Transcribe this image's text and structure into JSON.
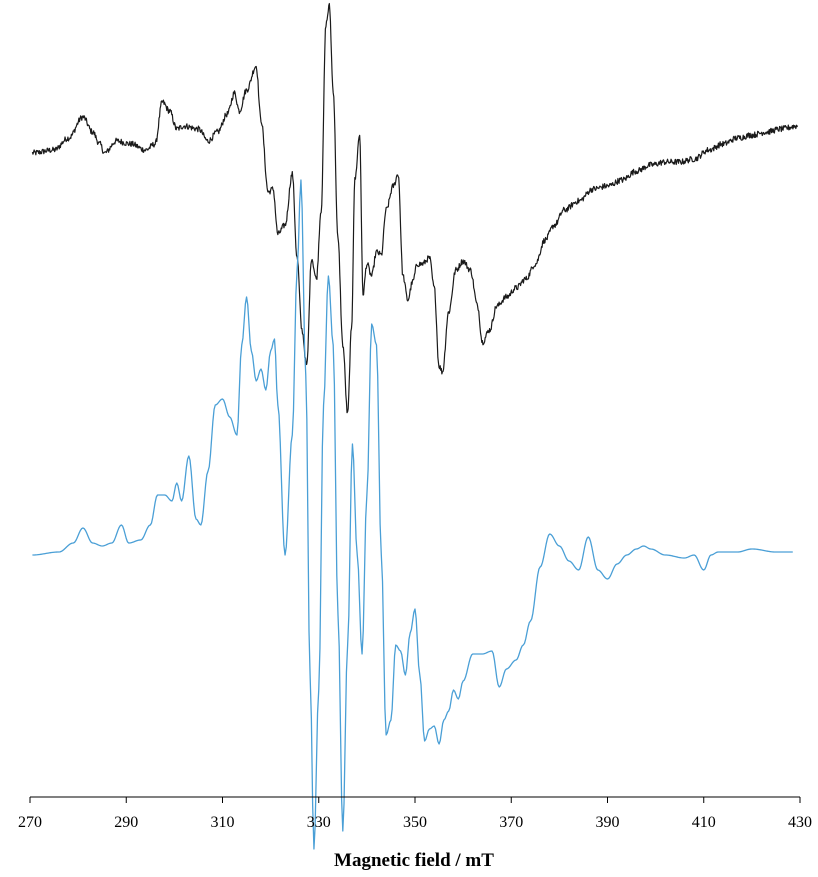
{
  "chart_data": {
    "type": "line",
    "title": "",
    "xlabel": "Magnetic field / mT",
    "ylabel": "",
    "xlim": [
      270,
      430
    ],
    "xticks": [
      270,
      290,
      310,
      330,
      350,
      370,
      390,
      410,
      430
    ],
    "grid": false,
    "legend": "none",
    "y_axis_shown": false,
    "ylim": [
      -1.3,
      1.3
    ],
    "series": [
      {
        "color": "#1a1a1a",
        "line_width": 1.2,
        "noise": 0.01,
        "baseline_offset": 0.85,
        "points": [
          [
            270.5,
            -0.01
          ],
          [
            275,
            0.0
          ],
          [
            278,
            0.04
          ],
          [
            281,
            0.11
          ],
          [
            283,
            0.06
          ],
          [
            284.5,
            0.02
          ],
          [
            285.5,
            -0.01
          ],
          [
            288,
            0.03
          ],
          [
            291,
            0.02
          ],
          [
            294,
            0.0
          ],
          [
            296,
            0.02
          ],
          [
            297.5,
            0.16
          ],
          [
            299,
            0.13
          ],
          [
            300.5,
            0.07
          ],
          [
            302,
            0.08
          ],
          [
            305,
            0.07
          ],
          [
            307,
            0.03
          ],
          [
            309,
            0.06
          ],
          [
            311,
            0.12
          ],
          [
            312.5,
            0.19
          ],
          [
            313.5,
            0.13
          ],
          [
            315,
            0.2
          ],
          [
            317,
            0.28
          ],
          [
            318,
            0.1
          ],
          [
            319.5,
            -0.14
          ],
          [
            320.5,
            -0.13
          ],
          [
            321.5,
            -0.28
          ],
          [
            323,
            -0.25
          ],
          [
            324.5,
            -0.08
          ],
          [
            325.5,
            -0.36
          ],
          [
            326.5,
            -0.6
          ],
          [
            327.5,
            -0.72
          ],
          [
            328.5,
            -0.36
          ],
          [
            329.5,
            -0.43
          ],
          [
            330.5,
            -0.2
          ],
          [
            331.5,
            0.42
          ],
          [
            332.2,
            0.48
          ],
          [
            333,
            0.2
          ],
          [
            334,
            -0.3
          ],
          [
            335,
            -0.65
          ],
          [
            336,
            -0.88
          ],
          [
            336.8,
            -0.6
          ],
          [
            337.5,
            -0.1
          ],
          [
            338.5,
            0.05
          ],
          [
            339.2,
            -0.48
          ],
          [
            340,
            -0.38
          ],
          [
            341,
            -0.42
          ],
          [
            342,
            -0.34
          ],
          [
            343,
            -0.35
          ],
          [
            344,
            -0.2
          ],
          [
            345.5,
            -0.12
          ],
          [
            346.5,
            -0.08
          ],
          [
            347.5,
            -0.42
          ],
          [
            348.5,
            -0.5
          ],
          [
            349.5,
            -0.44
          ],
          [
            350.5,
            -0.38
          ],
          [
            351.5,
            -0.38
          ],
          [
            353,
            -0.36
          ],
          [
            354,
            -0.46
          ],
          [
            355,
            -0.72
          ],
          [
            355.7,
            -0.74
          ],
          [
            357,
            -0.54
          ],
          [
            358.5,
            -0.4
          ],
          [
            360,
            -0.37
          ],
          [
            361.5,
            -0.4
          ],
          [
            363,
            -0.52
          ],
          [
            364,
            -0.64
          ],
          [
            365.5,
            -0.6
          ],
          [
            367,
            -0.52
          ],
          [
            369,
            -0.49
          ],
          [
            371,
            -0.46
          ],
          [
            373,
            -0.43
          ],
          [
            375,
            -0.38
          ],
          [
            377,
            -0.3
          ],
          [
            379,
            -0.25
          ],
          [
            381,
            -0.2
          ],
          [
            384,
            -0.17
          ],
          [
            387,
            -0.13
          ],
          [
            390,
            -0.12
          ],
          [
            393,
            -0.1
          ],
          [
            396,
            -0.07
          ],
          [
            399,
            -0.05
          ],
          [
            402,
            -0.04
          ],
          [
            405,
            -0.04
          ],
          [
            408,
            -0.03
          ],
          [
            411,
            0.0
          ],
          [
            414,
            0.02
          ],
          [
            417,
            0.04
          ],
          [
            420,
            0.05
          ],
          [
            423,
            0.06
          ],
          [
            426,
            0.07
          ],
          [
            429.5,
            0.08
          ]
        ]
      },
      {
        "color": "#4a9fd6",
        "line_width": 1.3,
        "noise": 0,
        "baseline_offset": -0.5,
        "points": [
          [
            270.5,
            0.0
          ],
          [
            276,
            0.01
          ],
          [
            279,
            0.04
          ],
          [
            281,
            0.09
          ],
          [
            283,
            0.04
          ],
          [
            285,
            0.03
          ],
          [
            287,
            0.04
          ],
          [
            289,
            0.1
          ],
          [
            290.5,
            0.04
          ],
          [
            293,
            0.05
          ],
          [
            295,
            0.1
          ],
          [
            296.5,
            0.2
          ],
          [
            298,
            0.2
          ],
          [
            299.5,
            0.18
          ],
          [
            300.5,
            0.24
          ],
          [
            301.5,
            0.18
          ],
          [
            303,
            0.33
          ],
          [
            304.5,
            0.12
          ],
          [
            305.5,
            0.1
          ],
          [
            307,
            0.28
          ],
          [
            308.5,
            0.5
          ],
          [
            310,
            0.52
          ],
          [
            311.5,
            0.46
          ],
          [
            313,
            0.4
          ],
          [
            314,
            0.7
          ],
          [
            315,
            0.86
          ],
          [
            316,
            0.68
          ],
          [
            317,
            0.58
          ],
          [
            318,
            0.62
          ],
          [
            319,
            0.55
          ],
          [
            320,
            0.68
          ],
          [
            320.8,
            0.72
          ],
          [
            321.5,
            0.5
          ],
          [
            323,
            0.0
          ],
          [
            324.5,
            0.4
          ],
          [
            325.5,
            0.95
          ],
          [
            326.3,
            1.25
          ],
          [
            327.3,
            0.6
          ],
          [
            328.2,
            -0.4
          ],
          [
            329,
            -0.98
          ],
          [
            330,
            -0.45
          ],
          [
            331,
            0.5
          ],
          [
            332,
            0.93
          ],
          [
            333,
            0.7
          ],
          [
            334,
            -0.2
          ],
          [
            335,
            -0.92
          ],
          [
            336,
            -0.3
          ],
          [
            337,
            0.37
          ],
          [
            338,
            0.0
          ],
          [
            339,
            -0.33
          ],
          [
            340,
            0.2
          ],
          [
            341,
            0.77
          ],
          [
            342,
            0.7
          ],
          [
            343,
            0.0
          ],
          [
            344,
            -0.6
          ],
          [
            345,
            -0.55
          ],
          [
            346,
            -0.3
          ],
          [
            347,
            -0.32
          ],
          [
            348,
            -0.4
          ],
          [
            349,
            -0.26
          ],
          [
            350,
            -0.18
          ],
          [
            351,
            -0.4
          ],
          [
            352,
            -0.62
          ],
          [
            353,
            -0.58
          ],
          [
            354,
            -0.57
          ],
          [
            355,
            -0.63
          ],
          [
            356,
            -0.55
          ],
          [
            357,
            -0.52
          ],
          [
            358,
            -0.45
          ],
          [
            359,
            -0.48
          ],
          [
            360,
            -0.42
          ],
          [
            362,
            -0.33
          ],
          [
            364,
            -0.33
          ],
          [
            366,
            -0.32
          ],
          [
            367.5,
            -0.44
          ],
          [
            369,
            -0.38
          ],
          [
            371,
            -0.35
          ],
          [
            372.5,
            -0.3
          ],
          [
            374,
            -0.22
          ],
          [
            376,
            -0.04
          ],
          [
            378,
            0.07
          ],
          [
            380,
            0.03
          ],
          [
            382,
            -0.02
          ],
          [
            384,
            -0.05
          ],
          [
            386,
            0.06
          ],
          [
            388,
            -0.05
          ],
          [
            390,
            -0.08
          ],
          [
            392,
            -0.03
          ],
          [
            394,
            0.0
          ],
          [
            396,
            0.02
          ],
          [
            397.5,
            0.03
          ],
          [
            399,
            0.02
          ],
          [
            402,
            0.0
          ],
          [
            406,
            -0.01
          ],
          [
            408,
            0.0
          ],
          [
            410,
            -0.05
          ],
          [
            411.5,
            0.0
          ],
          [
            413,
            0.01
          ],
          [
            417,
            0.01
          ],
          [
            420,
            0.02
          ],
          [
            425,
            0.01
          ],
          [
            428.5,
            0.01
          ]
        ]
      }
    ]
  }
}
